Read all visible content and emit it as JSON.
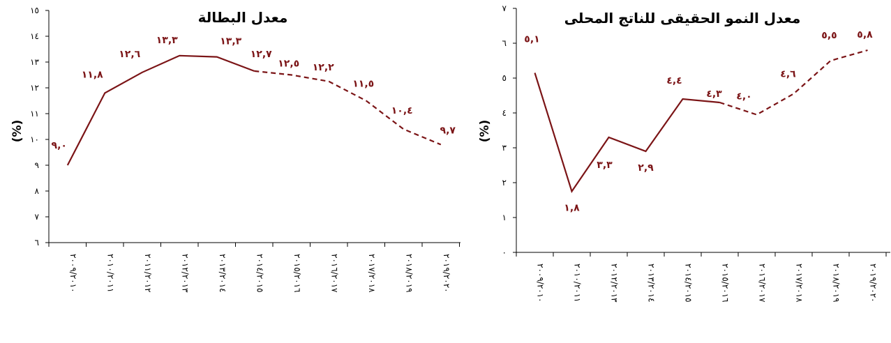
{
  "chart_data": [
    {
      "type": "line",
      "title": "معدل البطالة",
      "ylabel": "(%)",
      "xlabel": "",
      "ylim": [
        6,
        15
      ],
      "y_ticks": [
        "٦",
        "٧",
        "٨",
        "٩",
        "١٠",
        "١١",
        "١٢",
        "١٣",
        "١٤",
        "١٥"
      ],
      "categories": [
        "٢٠٠٩/٢٠١٠",
        "٢٠١٠/٢٠١١",
        "٢٠١١/٢٠١٢",
        "٢٠١٢/٢٠١٣",
        "٢٠١٣/٢٠١٤",
        "٢٠١٤/٢٠١٥",
        "٢٠١٥/٢٠١٦",
        "٢٠١٦/٢٠١٧",
        "٢٠١٧/٢٠١٨",
        "٢٠١٨/٢٠١٩",
        "٢٠١٩/٢٠٢٠"
      ],
      "values": [
        9.0,
        11.8,
        12.6,
        13.3,
        13.3,
        12.7,
        12.5,
        12.2,
        11.5,
        10.4,
        9.7
      ],
      "data_labels": [
        "٩,٠",
        "١١,٨",
        "١٢,٦",
        "١٣,٣",
        "١٣,٣",
        "١٢,٧",
        "١٢,٥",
        "١٢,٢",
        "١١,٥",
        "١٠,٤",
        "٩,٧"
      ],
      "plotted_values": [
        9.0,
        11.8,
        12.6,
        13.25,
        13.2,
        12.65,
        12.5,
        12.25,
        11.5,
        10.4,
        9.8
      ],
      "solid_until_index": 5,
      "line_color": "#7b1416",
      "grid": false,
      "legend": "none"
    },
    {
      "type": "line",
      "title": "معدل النمو الحقيقى للناتج المحلى",
      "ylabel": "(%)",
      "xlabel": "",
      "ylim": [
        0,
        7
      ],
      "y_ticks": [
        "٠",
        "١",
        "٢",
        "٣",
        "٤",
        "٥",
        "٦",
        "٧"
      ],
      "categories": [
        "٢٠٠٩/٢٠١٠",
        "٢٠١٠/٢٠١١",
        "٢٠١٢/٢٠١٣",
        "٢٠١٣/٢٠١٤",
        "٢٠١٤/٢٠١٥",
        "٢٠١٥/٢٠١٦",
        "٢٠١٦/٢٠١٧",
        "٢٠١٧/٢٠١٨",
        "٢٠١٨/٢٠١٩",
        "٢٠١٩/٢٠٢٠"
      ],
      "values": [
        5.1,
        1.8,
        3.3,
        2.9,
        4.4,
        4.3,
        4.0,
        4.6,
        5.5,
        5.8
      ],
      "data_labels": [
        "٥,١",
        "١,٨",
        "٣,٣",
        "٢,٩",
        "٤,٤",
        "٤,٣",
        "٤,٠",
        "٤,٦",
        "٥,٥",
        "٥,٨"
      ],
      "plotted_values": [
        5.15,
        1.75,
        3.3,
        2.9,
        4.4,
        4.3,
        3.95,
        4.55,
        5.5,
        5.8
      ],
      "solid_until_index": 5,
      "line_color": "#7b1416",
      "grid": false,
      "legend": "none"
    }
  ]
}
